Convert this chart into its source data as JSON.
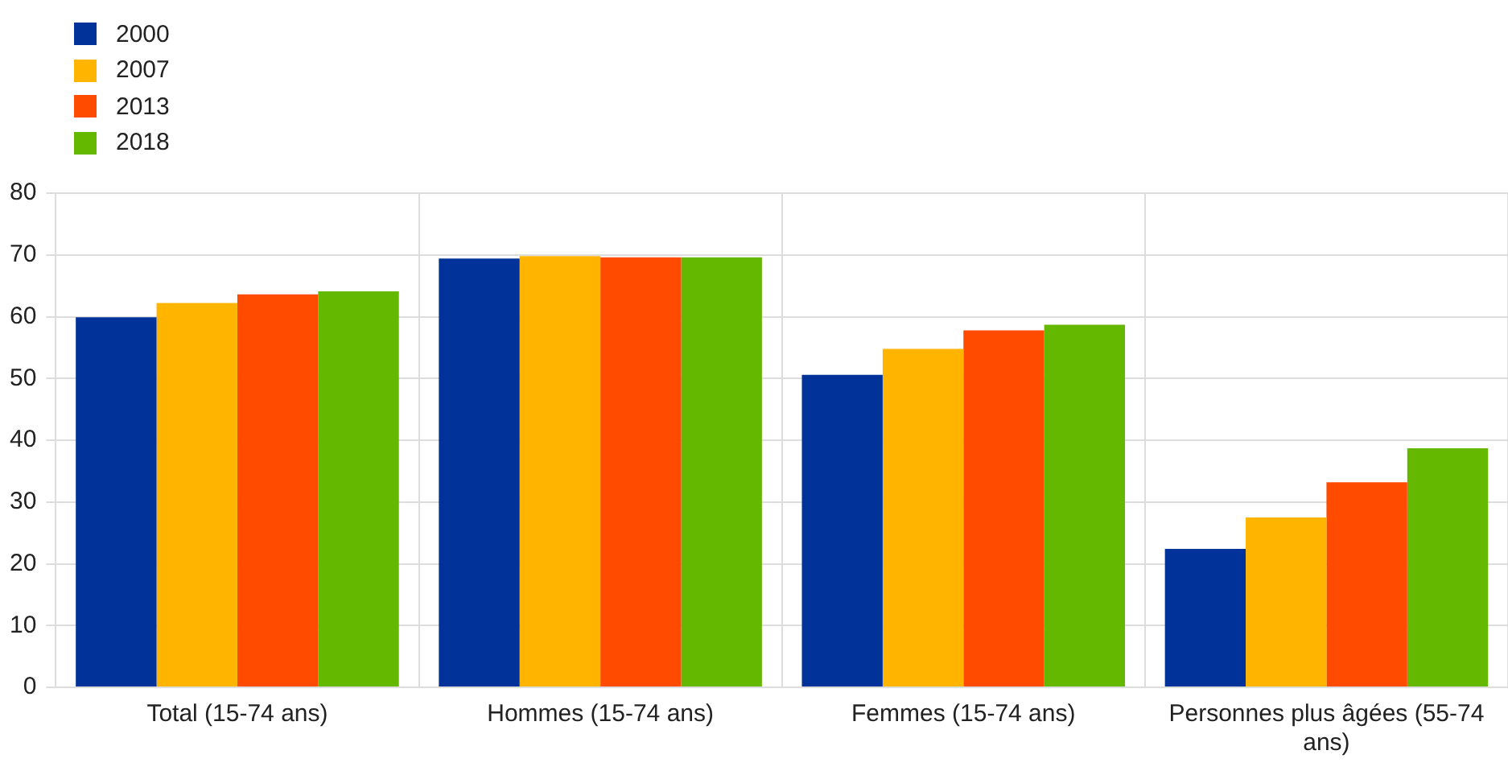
{
  "chart_data": {
    "type": "bar",
    "categories": [
      "Total (15-74 ans)",
      "Hommes (15-74 ans)",
      "Femmes (15-74 ans)",
      "Personnes plus âgées (55-74 ans)"
    ],
    "series": [
      {
        "name": "2000",
        "color": "#003299",
        "values": [
          59.9,
          69.4,
          50.6,
          22.4
        ]
      },
      {
        "name": "2007",
        "color": "#ffb400",
        "values": [
          62.2,
          69.8,
          54.8,
          27.5
        ]
      },
      {
        "name": "2013",
        "color": "#ff4b00",
        "values": [
          63.6,
          69.6,
          57.8,
          33.2
        ]
      },
      {
        "name": "2018",
        "color": "#65b800",
        "values": [
          64.1,
          69.6,
          58.7,
          38.7
        ]
      }
    ],
    "ylim": [
      0,
      80
    ],
    "yticks": [
      0,
      10,
      20,
      30,
      40,
      50,
      60,
      70,
      80
    ],
    "grid": true,
    "legend": "top left"
  }
}
